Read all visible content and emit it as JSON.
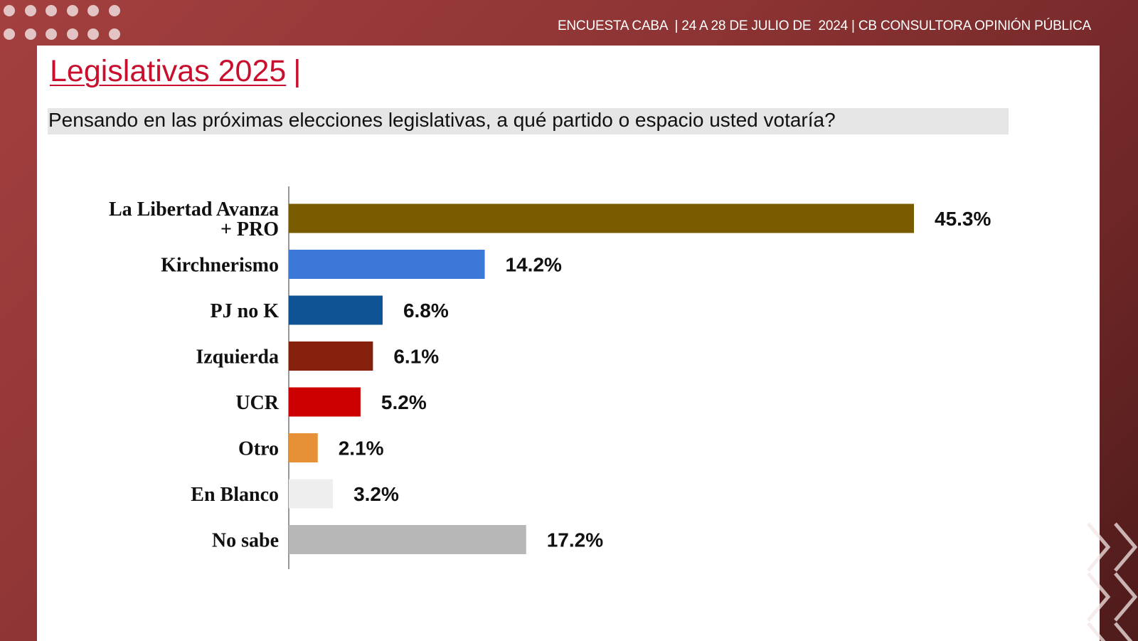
{
  "header": {
    "text": "ENCUESTA CABA  | 24 A 28 DE JULIO DE  2024 | CB CONSULTORA OPINIÓN PÚBLICA"
  },
  "title": {
    "text": "Legislativas 2025",
    "separator": "|"
  },
  "question": "Pensando en las próximas elecciones legislativas, a qué partido o espacio usted votaría?",
  "chart_data": {
    "type": "bar",
    "orientation": "horizontal",
    "categories": [
      [
        "La Libertad Avanza",
        "+ PRO"
      ],
      [
        "Kirchnerismo"
      ],
      [
        "PJ no K"
      ],
      [
        "Izquierda"
      ],
      [
        "UCR"
      ],
      [
        "Otro"
      ],
      [
        "En Blanco"
      ],
      [
        "No sabe"
      ]
    ],
    "values": [
      45.3,
      14.2,
      6.8,
      6.1,
      5.2,
      2.1,
      3.2,
      17.2
    ],
    "value_labels": [
      "45.3%",
      "14.2%",
      "6.8%",
      "6.1%",
      "5.2%",
      "2.1%",
      "3.2%",
      "17.2%"
    ],
    "colors": [
      "#7a5c00",
      "#3c78d8",
      "#0f5294",
      "#85200c",
      "#cc0000",
      "#e69138",
      "#eeeeee",
      "#b7b7b7"
    ],
    "xlim": [
      0,
      50
    ],
    "grid": false,
    "legend": "none"
  },
  "colors": {
    "accent": "#c8102e",
    "background": "#8e3434"
  }
}
